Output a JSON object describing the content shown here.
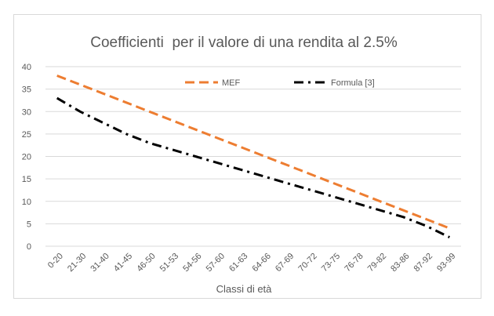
{
  "chart_data": {
    "type": "line",
    "title": "Coefficienti  per il valore di una rendita al 2.5%",
    "xlabel": "Classi di età",
    "ylabel": "",
    "ylim": [
      0,
      40
    ],
    "yticks": [
      0,
      5,
      10,
      15,
      20,
      25,
      30,
      35,
      40
    ],
    "grid": true,
    "legend_position": "top-center",
    "categories": [
      "0-20",
      "21-30",
      "31-40",
      "41-45",
      "46-50",
      "51-53",
      "54-56",
      "57-60",
      "61-63",
      "64-66",
      "67-69",
      "70-72",
      "73-75",
      "76-78",
      "79-82",
      "83-86",
      "87-92",
      "93-99"
    ],
    "series": [
      {
        "name": "MEF",
        "color": "#ed7d31",
        "style": "dashed",
        "values": [
          38,
          36,
          34,
          32,
          30,
          28,
          26,
          24,
          22,
          20,
          18,
          16,
          14,
          12,
          10,
          8,
          6,
          4
        ]
      },
      {
        "name": "Formula [3]",
        "color": "#000000",
        "style": "dash-dot",
        "values": [
          33,
          30,
          27.5,
          25,
          23,
          21.5,
          20,
          18.5,
          17,
          15.5,
          14,
          12.5,
          11,
          9.5,
          8,
          6.5,
          4.5,
          2
        ]
      }
    ]
  }
}
